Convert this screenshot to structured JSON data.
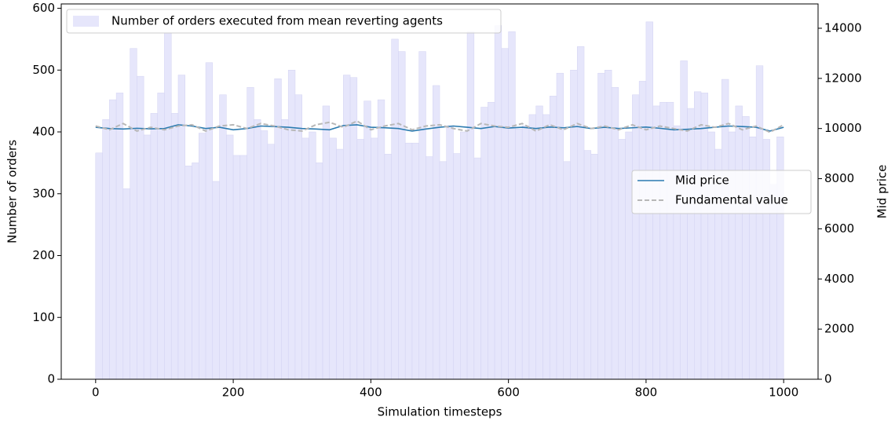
{
  "chart_data": {
    "type": "histogram",
    "xlabel": "Simulation timesteps",
    "ylabel": "Number of orders",
    "y2label": "Mid price",
    "xlim": [
      -50,
      1050
    ],
    "ylim": [
      0,
      607
    ],
    "y2lim": [
      0,
      14970
    ],
    "xticks": [
      0,
      200,
      400,
      600,
      800,
      1000
    ],
    "yticks": [
      0,
      100,
      200,
      300,
      400,
      500,
      600
    ],
    "y2ticks": [
      0,
      2000,
      4000,
      6000,
      8000,
      10000,
      12000,
      14000
    ],
    "hist_name": "Number of orders executed from mean reverting agents",
    "hist_color": "#e6e6fb",
    "hist_edge": "#d2d2f2",
    "bins": [
      0,
      10,
      20,
      30,
      40,
      50,
      60,
      70,
      80,
      90,
      100,
      110,
      120,
      130,
      140,
      150,
      160,
      170,
      180,
      190,
      200,
      210,
      220,
      230,
      240,
      250,
      260,
      270,
      280,
      290,
      300,
      310,
      320,
      330,
      340,
      350,
      360,
      370,
      380,
      390,
      400,
      410,
      420,
      430,
      440,
      450,
      460,
      470,
      480,
      490,
      500,
      510,
      520,
      530,
      540,
      550,
      560,
      570,
      580,
      590,
      600,
      610,
      620,
      630,
      640,
      650,
      660,
      670,
      680,
      690,
      700,
      710,
      720,
      730,
      740,
      750,
      760,
      770,
      780,
      790,
      800,
      810,
      820,
      830,
      840,
      850,
      860,
      870,
      880,
      890,
      900,
      910,
      920,
      930,
      940,
      950,
      960,
      970,
      980,
      990,
      1000
    ],
    "counts": [
      366,
      420,
      452,
      463,
      308,
      535,
      490,
      395,
      430,
      463,
      560,
      430,
      492,
      345,
      350,
      398,
      512,
      320,
      460,
      395,
      362,
      362,
      472,
      420,
      402,
      380,
      486,
      420,
      500,
      460,
      390,
      400,
      350,
      442,
      390,
      372,
      492,
      488,
      388,
      450,
      390,
      452,
      364,
      550,
      530,
      382,
      382,
      530,
      360,
      475,
      352,
      410,
      365,
      400,
      562,
      358,
      440,
      448,
      572,
      535,
      562,
      405,
      410,
      428,
      442,
      428,
      458,
      495,
      352,
      500,
      538,
      370,
      364,
      495,
      500,
      472,
      388,
      400,
      460,
      482,
      578,
      442,
      448,
      448,
      410,
      515,
      438,
      465,
      463,
      400,
      372,
      485,
      400,
      442,
      425,
      392,
      507,
      388,
      315,
      392
    ],
    "lines": {
      "x": [
        0,
        20,
        40,
        60,
        80,
        100,
        120,
        140,
        160,
        180,
        200,
        220,
        240,
        260,
        280,
        300,
        320,
        340,
        360,
        380,
        400,
        420,
        440,
        460,
        480,
        500,
        520,
        540,
        560,
        580,
        600,
        620,
        640,
        660,
        680,
        700,
        720,
        740,
        760,
        780,
        800,
        820,
        840,
        860,
        880,
        900,
        920,
        940,
        960,
        980,
        1000
      ],
      "series": [
        {
          "name": "Mid price",
          "color": "#2b7bb0",
          "dash": false,
          "axis": "y2",
          "values": [
            10050,
            10000,
            9980,
            10010,
            9990,
            10000,
            10150,
            10100,
            10000,
            10050,
            9950,
            10000,
            10100,
            10080,
            10050,
            10000,
            9980,
            9950,
            10120,
            10150,
            10050,
            10030,
            10000,
            9900,
            9980,
            10050,
            10100,
            10050,
            10000,
            10080,
            10020,
            10050,
            10000,
            10060,
            10030,
            10080,
            10000,
            10050,
            10000,
            10030,
            10060,
            10010,
            9950,
            9970,
            10000,
            10050,
            10100,
            10080,
            10050,
            9900,
            10050
          ]
        },
        {
          "name": "Fundamental value",
          "color": "#b8b8b8",
          "dash": true,
          "axis": "y2",
          "values": [
            10100,
            9950,
            10200,
            9900,
            10050,
            9950,
            10100,
            10150,
            9900,
            10100,
            10150,
            10000,
            10200,
            10100,
            9950,
            9900,
            10150,
            10250,
            10050,
            10300,
            9950,
            10100,
            10200,
            9950,
            10100,
            10150,
            10000,
            9900,
            10200,
            10100,
            10050,
            10200,
            9900,
            10150,
            9950,
            10200,
            10000,
            10100,
            9950,
            10150,
            9950,
            10100,
            10000,
            9900,
            10150,
            10050,
            10200,
            9950,
            10100,
            9850,
            10150
          ]
        }
      ]
    }
  }
}
